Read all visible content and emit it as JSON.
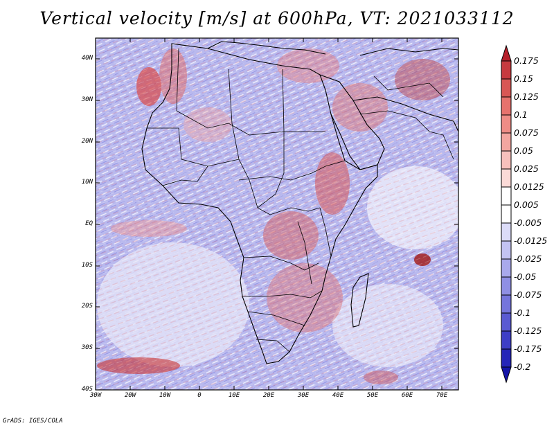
{
  "title": "Vertical velocity [m/s] at 600hPa, VT: 2021033112",
  "credit": "GrADS: IGES/COLA",
  "map": {
    "lat_labels": [
      "40N",
      "30N",
      "20N",
      "10N",
      "EQ",
      "10S",
      "20S",
      "30S",
      "40S"
    ],
    "lon_labels": [
      "30W",
      "20W",
      "10W",
      "0",
      "10E",
      "20E",
      "30E",
      "40E",
      "50E",
      "60E",
      "70E"
    ],
    "lon_range": [
      -30,
      75
    ],
    "lat_range": [
      -40,
      45
    ]
  },
  "colorbar": {
    "labels": [
      "0.175",
      "0.15",
      "0.125",
      "0.1",
      "0.075",
      "0.05",
      "0.025",
      "0.0125",
      "0.005",
      "-0.005",
      "-0.0125",
      "-0.025",
      "-0.05",
      "-0.075",
      "-0.1",
      "-0.125",
      "-0.175",
      "-0.2"
    ],
    "colors": [
      "#b51f2a",
      "#c73a3f",
      "#d85755",
      "#e6726d",
      "#ee8c86",
      "#f3a6a0",
      "#f7c0bc",
      "#fbdad7",
      "#ffffff",
      "#ffffff",
      "#dcdcf8",
      "#c3c3f2",
      "#a9a9ec",
      "#8f8fe4",
      "#7575dc",
      "#5a5ad2",
      "#3e3ec6",
      "#2525b8",
      "#1414a8"
    ]
  }
}
